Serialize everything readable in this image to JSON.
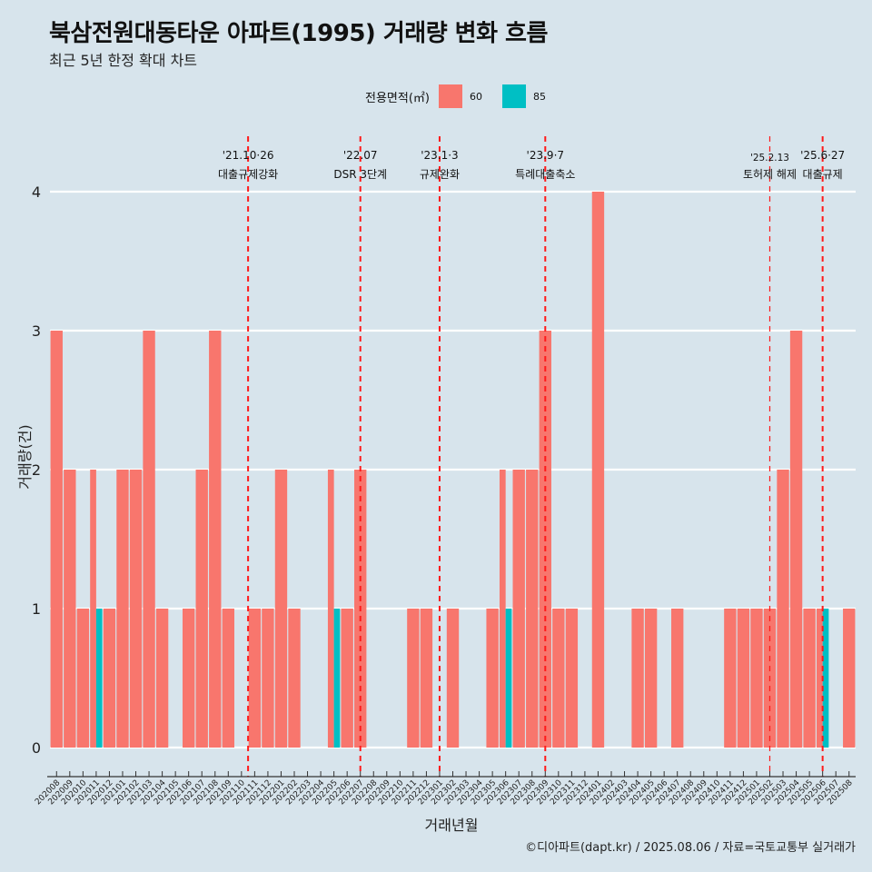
{
  "title": "북삼전원대동타운 아파트(1995) 거래량 변화 흐름",
  "subtitle": "최근 5년 한정 확대 차트",
  "caption": "©디아파트(dapt.kr) / 2025.08.06 / 자료=국토교통부 실거래가",
  "legend": {
    "title": "전용면적(㎡)",
    "items": [
      {
        "label": "60",
        "color": "#f8766d"
      },
      {
        "label": "85",
        "color": "#00bfc4"
      }
    ]
  },
  "chart_data": {
    "type": "bar",
    "xlabel": "거래년월",
    "ylabel": "거래량(건)",
    "ylim": [
      0,
      4
    ],
    "yticks": [
      0,
      1,
      2,
      3,
      4
    ],
    "grid": true,
    "legend_position": "top",
    "categories": [
      "202008",
      "202009",
      "202010",
      "202011",
      "202012",
      "202101",
      "202102",
      "202103",
      "202104",
      "202105",
      "202106",
      "202107",
      "202108",
      "202109",
      "202110",
      "202111",
      "202112",
      "202201",
      "202202",
      "202203",
      "202204",
      "202205",
      "202206",
      "202207",
      "202208",
      "202209",
      "202210",
      "202211",
      "202212",
      "202301",
      "202302",
      "202303",
      "202304",
      "202305",
      "202306",
      "202307",
      "202308",
      "202309",
      "202310",
      "202311",
      "202312",
      "202401",
      "202402",
      "202403",
      "202404",
      "202405",
      "202406",
      "202407",
      "202408",
      "202409",
      "202410",
      "202411",
      "202412",
      "202501",
      "202502",
      "202503",
      "202504",
      "202505",
      "202506",
      "202507",
      "202508"
    ],
    "series": [
      {
        "name": "60",
        "color": "#f8766d",
        "values": [
          3,
          2,
          1,
          2,
          1,
          2,
          2,
          3,
          1,
          0,
          1,
          2,
          3,
          1,
          0,
          1,
          1,
          2,
          1,
          0,
          0,
          2,
          1,
          2,
          0,
          0,
          0,
          1,
          1,
          0,
          1,
          0,
          0,
          1,
          2,
          2,
          2,
          3,
          1,
          1,
          0,
          4,
          0,
          0,
          1,
          1,
          0,
          1,
          0,
          0,
          0,
          1,
          1,
          1,
          1,
          2,
          3,
          1,
          1,
          0,
          1
        ]
      },
      {
        "name": "85",
        "color": "#00bfc4",
        "values": [
          0,
          0,
          0,
          1,
          0,
          0,
          0,
          0,
          0,
          0,
          0,
          0,
          0,
          0,
          0,
          0,
          0,
          0,
          0,
          0,
          0,
          1,
          0,
          0,
          0,
          0,
          0,
          0,
          0,
          0,
          0,
          0,
          0,
          0,
          1,
          0,
          0,
          0,
          0,
          0,
          0,
          0,
          0,
          0,
          0,
          0,
          0,
          0,
          0,
          0,
          0,
          0,
          0,
          0,
          0,
          0,
          0,
          0,
          1,
          0,
          0
        ]
      }
    ],
    "annotations": [
      {
        "x": "202110",
        "offset": 0.5,
        "line1": "'21.10·26",
        "line2": "대출규제강화",
        "thin": false
      },
      {
        "x": "202207",
        "offset": 0.0,
        "line1": "'22.07",
        "line2": "DSR 3단계",
        "thin": false
      },
      {
        "x": "202301",
        "offset": 0.0,
        "line1": "'23.1·3",
        "line2": "규제완화",
        "thin": false
      },
      {
        "x": "202309",
        "offset": 0.0,
        "line1": "'23.9·7",
        "line2": "특례대출축소",
        "thin": false
      },
      {
        "x": "202502",
        "offset": 0.0,
        "line1": "'25.2.13",
        "line2": "토허제 해제",
        "thin": true
      },
      {
        "x": "202506",
        "offset": 0.0,
        "line1": "'25.6·27",
        "line2": "대출규제",
        "thin": false
      }
    ]
  }
}
